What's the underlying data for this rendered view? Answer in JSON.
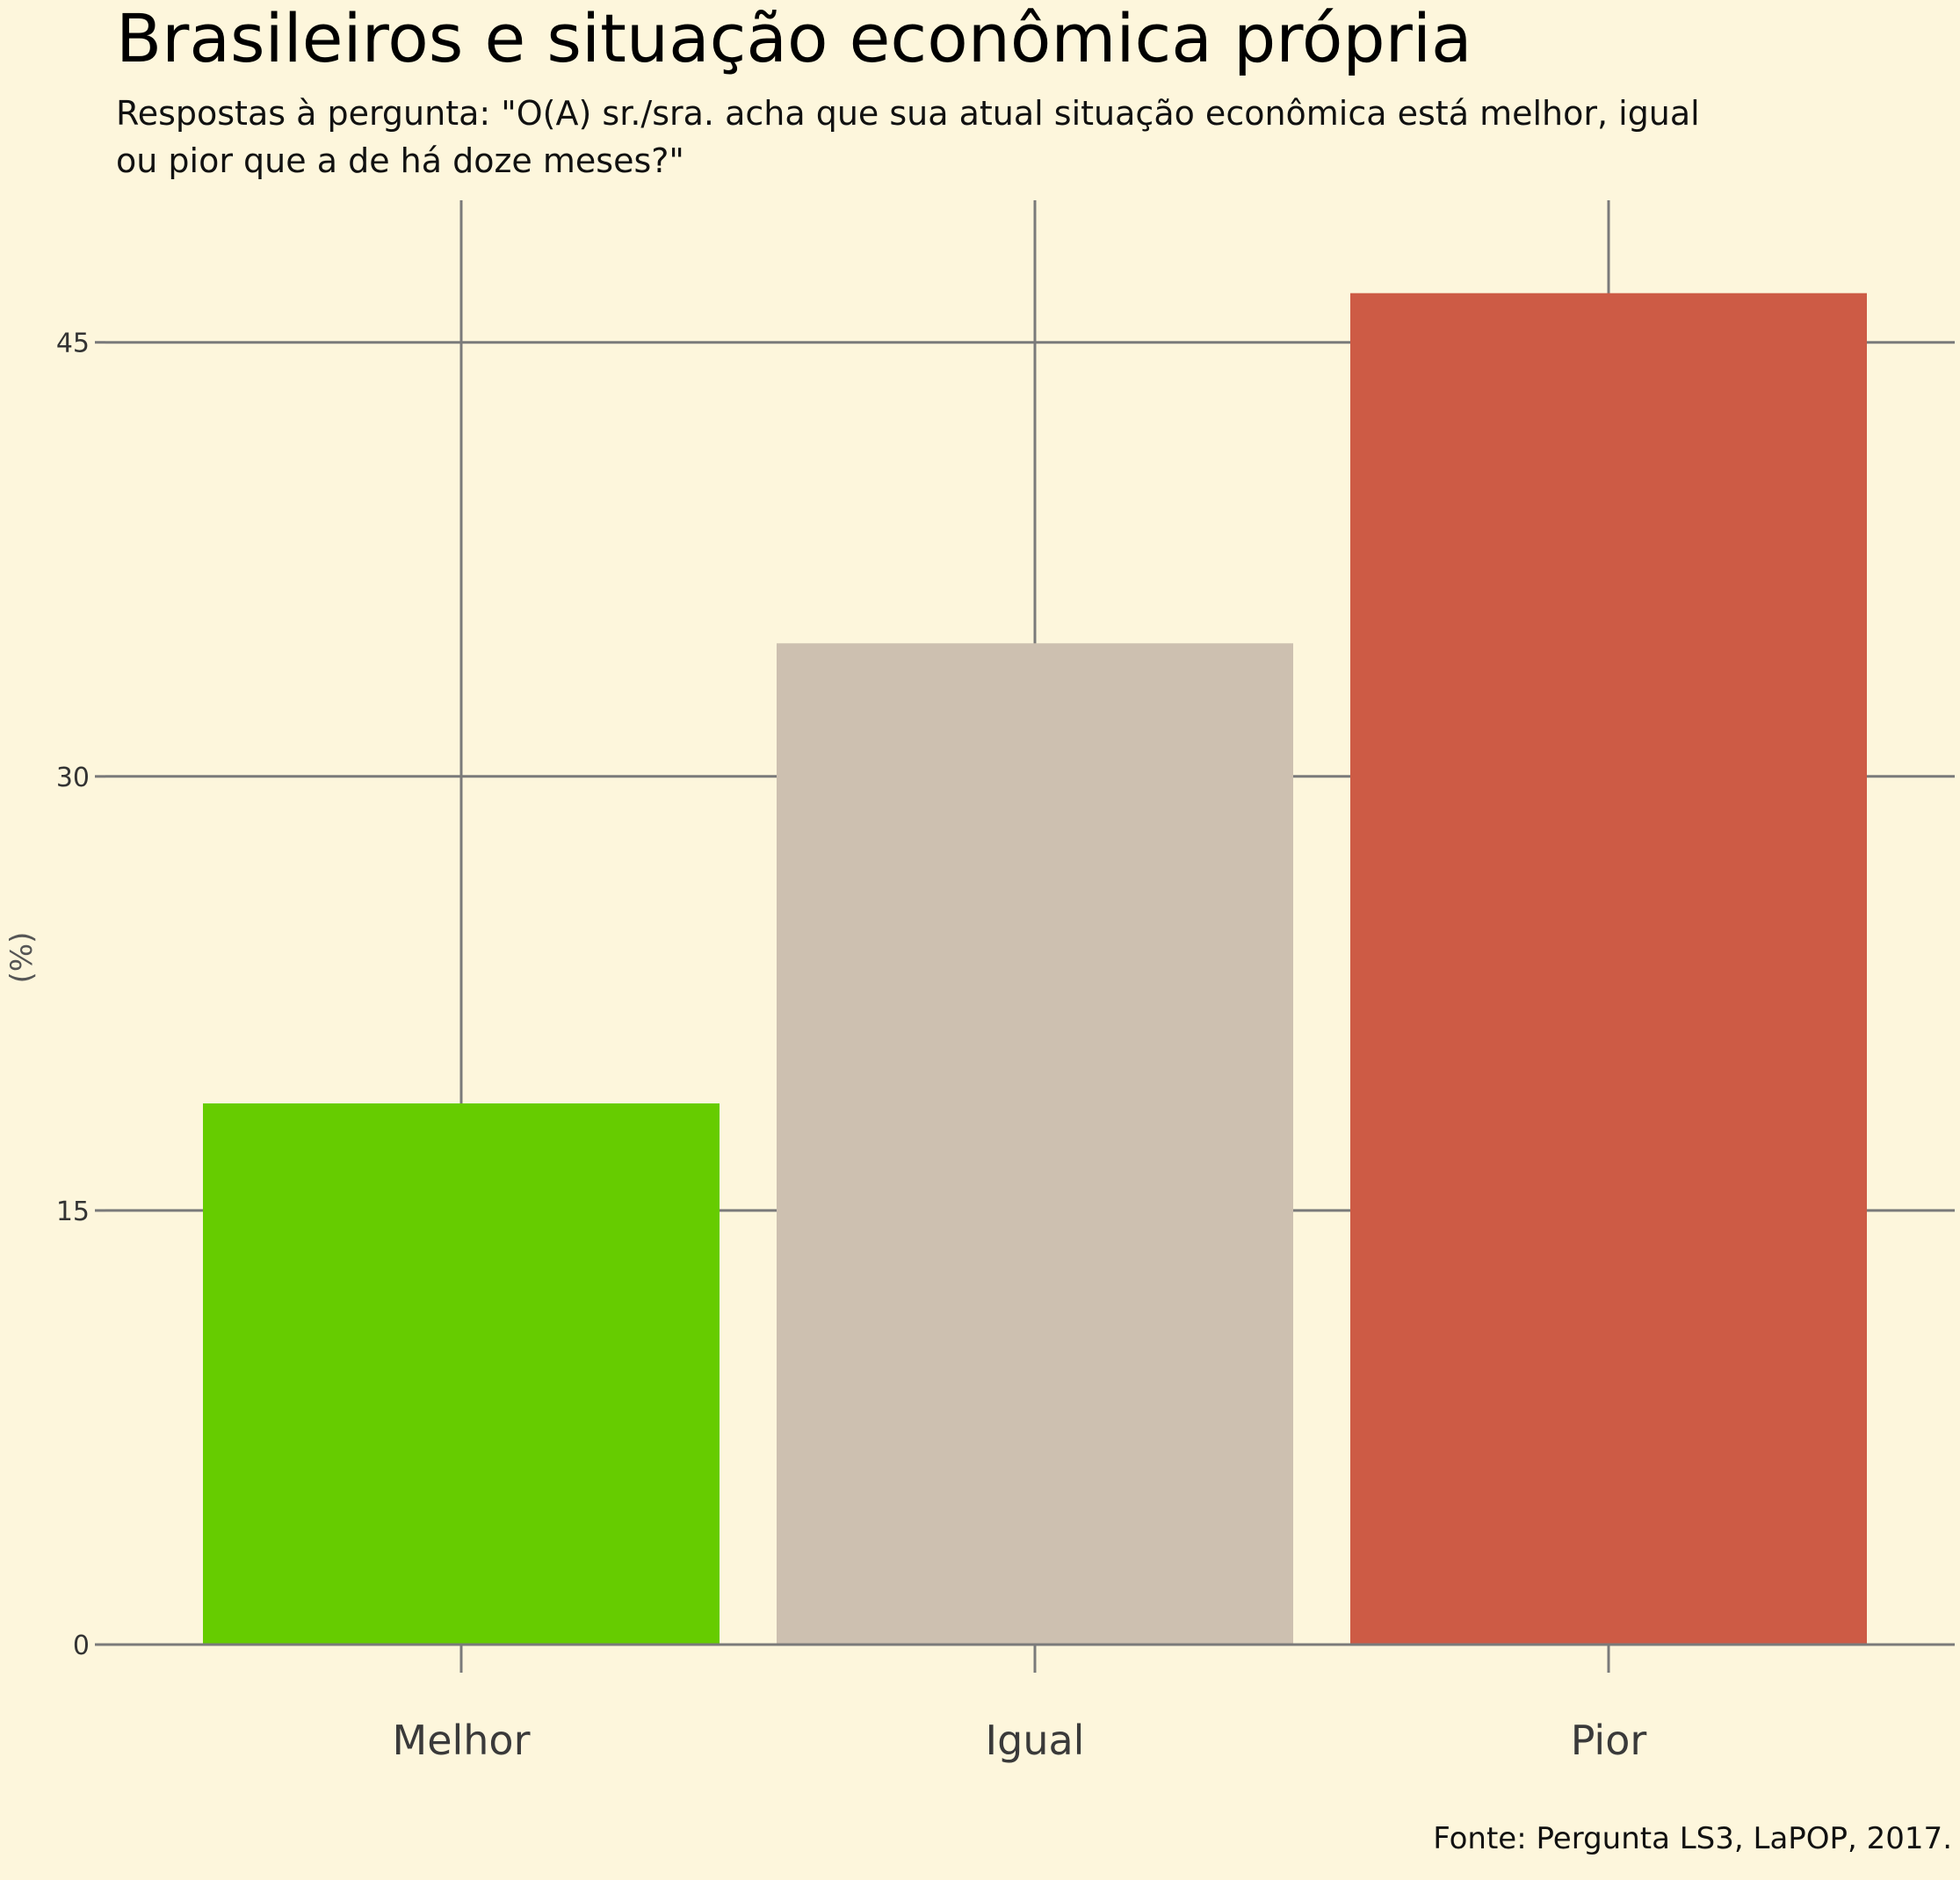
{
  "chart_data": {
    "type": "bar",
    "title": "Brasileiros e situação econômica própria",
    "subtitle_lines": [
      "Respostas à pergunta: \"O(A) sr./sra. acha que sua atual situação econômica está melhor, igual",
      "ou pior que a de há doze meses?\""
    ],
    "ylabel": "(%)",
    "xlabel": "",
    "categories": [
      "Melhor",
      "Igual",
      "Pior"
    ],
    "values": [
      18.7,
      34.6,
      46.7
    ],
    "colors": [
      "#66cc00",
      "#cdc0b0",
      "#cd5b45"
    ],
    "ylim": [
      0,
      50
    ],
    "yticks": [
      0,
      15,
      30,
      45
    ],
    "grid": true,
    "legend": "none",
    "caption": "Fonte: Pergunta LS3, LaPOP, 2017."
  },
  "style": {
    "background": "#fdf6dc",
    "grid_color": "#7a7a7a"
  }
}
